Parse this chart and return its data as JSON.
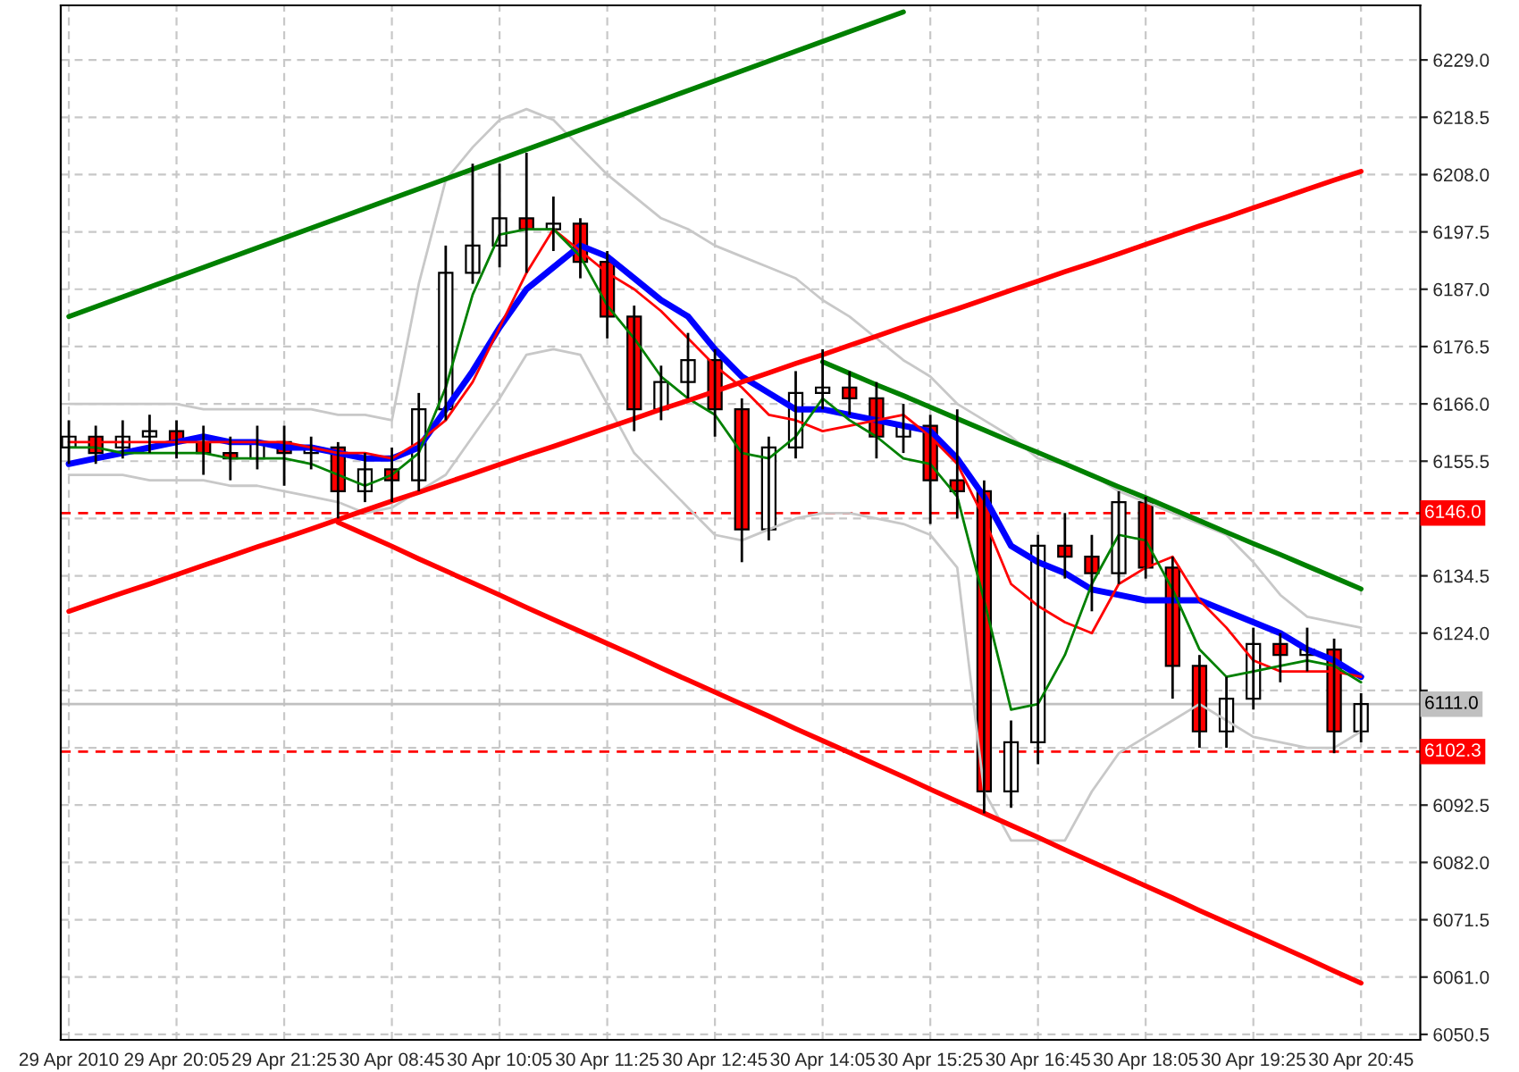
{
  "chart_data": {
    "type": "candlestick",
    "categories": [
      "29 Apr 2010",
      null,
      null,
      null,
      "29 Apr 20:05",
      null,
      null,
      null,
      "29 Apr 21:25",
      null,
      null,
      null,
      "30 Apr 08:45",
      null,
      null,
      null,
      "30 Apr 10:05",
      null,
      null,
      null,
      "30 Apr 11:25",
      null,
      null,
      null,
      "30 Apr 12:45",
      null,
      null,
      null,
      "30 Apr 14:05",
      null,
      null,
      null,
      "30 Apr 15:25",
      null,
      null,
      null,
      "30 Apr 16:45",
      null,
      null,
      null,
      "30 Apr 18:05",
      null,
      null,
      null,
      "30 Apr 19:25",
      null,
      null,
      null,
      "30 Apr 20:45"
    ],
    "ohlc": [
      [
        6158,
        6163,
        6155,
        6160
      ],
      [
        6160,
        6162,
        6155,
        6157
      ],
      [
        6158,
        6163,
        6156,
        6160
      ],
      [
        6160,
        6164,
        6157,
        6161
      ],
      [
        6161,
        6163,
        6156,
        6159
      ],
      [
        6159,
        6162,
        6153,
        6157
      ],
      [
        6157,
        6160,
        6152,
        6156
      ],
      [
        6156,
        6162,
        6154,
        6159
      ],
      [
        6159,
        6162,
        6151,
        6157
      ],
      [
        6157,
        6160,
        6154,
        6158
      ],
      [
        6158,
        6159,
        6145,
        6150
      ],
      [
        6150,
        6157,
        6148,
        6154
      ],
      [
        6154,
        6158,
        6148,
        6152
      ],
      [
        6152,
        6168,
        6150,
        6165
      ],
      [
        6165,
        6195,
        6163,
        6190
      ],
      [
        6190,
        6210,
        6188,
        6195
      ],
      [
        6195,
        6210,
        6191,
        6200
      ],
      [
        6200,
        6212,
        6190,
        6198
      ],
      [
        6198,
        6204,
        6194,
        6199
      ],
      [
        6199,
        6200,
        6189,
        6192
      ],
      [
        6192,
        6194,
        6178,
        6182
      ],
      [
        6182,
        6184,
        6161,
        6165
      ],
      [
        6165,
        6173,
        6163,
        6170
      ],
      [
        6170,
        6179,
        6167,
        6174
      ],
      [
        6174,
        6176,
        6160,
        6165
      ],
      [
        6165,
        6167,
        6137,
        6143
      ],
      [
        6143,
        6160,
        6141,
        6158
      ],
      [
        6158,
        6172,
        6156,
        6168
      ],
      [
        6168,
        6176,
        6165,
        6169
      ],
      [
        6169,
        6172,
        6164,
        6167
      ],
      [
        6167,
        6170,
        6156,
        6160
      ],
      [
        6160,
        6166,
        6157,
        6162
      ],
      [
        6162,
        6164,
        6144,
        6152
      ],
      [
        6152,
        6165,
        6145,
        6150
      ],
      [
        6150,
        6152,
        6091,
        6095
      ],
      [
        6095,
        6108,
        6092,
        6104
      ],
      [
        6104,
        6142,
        6100,
        6140
      ],
      [
        6140,
        6146,
        6134,
        6138
      ],
      [
        6138,
        6142,
        6128,
        6135
      ],
      [
        6135,
        6150,
        6133,
        6148
      ],
      [
        6148,
        6149,
        6134,
        6136
      ],
      [
        6136,
        6138,
        6112,
        6118
      ],
      [
        6118,
        6120,
        6103,
        6106
      ],
      [
        6106,
        6116,
        6103,
        6112
      ],
      [
        6112,
        6125,
        6110,
        6122
      ],
      [
        6122,
        6124,
        6115,
        6120
      ],
      [
        6120,
        6125,
        6117,
        6121
      ],
      [
        6121,
        6123,
        6102,
        6106
      ],
      [
        6106,
        6113,
        6104,
        6111
      ]
    ],
    "series": [
      {
        "type": "line",
        "color": "#0000ff",
        "values": [
          6155,
          6156,
          6157,
          6158,
          6159,
          6160,
          6159,
          6159,
          6158,
          6158,
          6157,
          6156,
          6156,
          6158,
          6165,
          6172,
          6180,
          6187,
          6191,
          6195,
          6193,
          6189,
          6185,
          6182,
          6176,
          6171,
          6168,
          6165,
          6165,
          6164,
          6163,
          6162,
          6161,
          6156,
          6149,
          6140,
          6137,
          6135,
          6132,
          6131,
          6130,
          6130,
          6130,
          6128,
          6126,
          6124,
          6121,
          6119,
          6116
        ]
      },
      {
        "type": "line",
        "color": "#ff0000",
        "values": [
          6159,
          6159,
          6159,
          6159,
          6159,
          6159,
          6159,
          6159,
          6159,
          6158,
          6157,
          6157,
          6156,
          6159,
          6163,
          6170,
          6180,
          6190,
          6198,
          6194,
          6190,
          6187,
          6183,
          6178,
          6173,
          6169,
          6164,
          6163,
          6161,
          6162,
          6163,
          6164,
          6160,
          6155,
          6145,
          6133,
          6129,
          6126,
          6124,
          6133,
          6136,
          6138,
          6130,
          6125,
          6119,
          6117,
          6117,
          6117,
          6116
        ]
      },
      {
        "type": "line",
        "color": "#008000",
        "values": [
          6158,
          6158,
          6157,
          6157,
          6157,
          6157,
          6156,
          6156,
          6156,
          6155,
          6153,
          6151,
          6153,
          6157,
          6169,
          6186,
          6197,
          6198,
          6198,
          6193,
          6184,
          6178,
          6171,
          6167,
          6164,
          6157,
          6156,
          6160,
          6167,
          6163,
          6160,
          6156,
          6155,
          6149,
          6130,
          6110,
          6111,
          6120,
          6133,
          6142,
          6141,
          6132,
          6121,
          6116,
          6117,
          6118,
          6119,
          6118,
          6115
        ]
      },
      {
        "type": "line",
        "color": "#c8c8c8",
        "values": [
          6166,
          6166,
          6166,
          6166,
          6166,
          6165,
          6165,
          6165,
          6165,
          6165,
          6164,
          6164,
          6163,
          6188,
          6207,
          6213,
          6218,
          6220,
          6218,
          6213,
          6208,
          6204,
          6200,
          6198,
          6195,
          6193,
          6191,
          6189,
          6185,
          6182,
          6178,
          6174,
          6171,
          6166,
          6163,
          6160,
          6156,
          6155,
          6153,
          6150,
          6148,
          6146,
          6144,
          6142,
          6137,
          6131,
          6127,
          6126,
          6125
        ]
      },
      {
        "type": "line",
        "color": "#c8c8c8",
        "values": [
          6153,
          6153,
          6153,
          6152,
          6152,
          6152,
          6151,
          6151,
          6150,
          6149,
          6148,
          6146,
          6147,
          6150,
          6153,
          6160,
          6167,
          6175,
          6176,
          6175,
          6166,
          6157,
          6152,
          6147,
          6142,
          6141,
          6143,
          6145,
          6146,
          6146,
          6145,
          6144,
          6142,
          6136,
          6095,
          6086,
          6086,
          6086,
          6095,
          6102,
          6105,
          6108,
          6111,
          6108,
          6105,
          6104,
          6103,
          6103,
          6106
        ]
      },
      {
        "type": "line",
        "color": "#008000",
        "values": [
          6182,
          6183.8,
          6185.6,
          6187.4,
          6189.2,
          6191,
          6192.8,
          6194.6,
          6196.4,
          6198.2,
          6200,
          6201.8,
          6203.6,
          6205.4,
          6207.2,
          6209,
          6210.8,
          6212.6,
          6214.4,
          6216.2,
          6218,
          6219.8,
          6221.6,
          6223.4,
          6225.2,
          6227,
          6228.8,
          6230.6,
          6232.4,
          6234.2,
          6236,
          6237.8,
          null,
          null,
          null,
          null,
          null,
          null,
          null,
          null,
          null,
          null,
          null,
          null,
          null,
          null,
          null,
          null,
          null
        ]
      },
      {
        "type": "line",
        "color": "#ff0000",
        "values": [
          6128.0,
          6129.7,
          6131.4,
          6133.0,
          6134.7,
          6136.4,
          6138.1,
          6139.8,
          6141.4,
          6143.1,
          6144.8,
          6146.5,
          6148.2,
          6149.8,
          6151.5,
          6153.2,
          6154.9,
          6156.6,
          6158.2,
          6159.9,
          6161.6,
          6163.3,
          6165.0,
          6166.6,
          6168.3,
          6170.0,
          6171.7,
          6173.4,
          6175.0,
          6176.7,
          6178.4,
          6180.1,
          6181.8,
          6183.4,
          6185.1,
          6186.8,
          6188.5,
          6190.2,
          6191.8,
          6193.5,
          6195.2,
          6196.9,
          6198.6,
          6200.2,
          6201.9,
          6203.6,
          6205.3,
          6207.0,
          6208.6
        ]
      },
      {
        "type": "line",
        "color": "#ff0000",
        "values": [
          null,
          null,
          null,
          null,
          null,
          null,
          null,
          null,
          null,
          null,
          6144.3,
          6142.1,
          6139.9,
          6137.6,
          6135.4,
          6133.2,
          6131.0,
          6128.7,
          6126.5,
          6124.3,
          6122.1,
          6119.9,
          6117.6,
          6115.4,
          6113.2,
          6111.0,
          6108.8,
          6106.5,
          6104.3,
          6102.1,
          6099.9,
          6097.7,
          6095.4,
          6093.2,
          6091.0,
          6088.8,
          6086.6,
          6084.3,
          6082.1,
          6079.9,
          6077.7,
          6075.5,
          6073.2,
          6071.0,
          6068.8,
          6066.6,
          6064.4,
          6062.1,
          6059.9
        ]
      },
      {
        "type": "line",
        "color": "#008000",
        "values": [
          null,
          null,
          null,
          null,
          null,
          null,
          null,
          null,
          null,
          null,
          null,
          null,
          null,
          null,
          null,
          null,
          null,
          null,
          null,
          null,
          null,
          null,
          null,
          null,
          null,
          null,
          null,
          null,
          6173.7,
          6171.6,
          6169.5,
          6167.5,
          6165.4,
          6163.3,
          6161.2,
          6159.1,
          6157.1,
          6155.0,
          6152.9,
          6150.8,
          6148.8,
          6146.7,
          6144.6,
          6142.5,
          6140.4,
          6138.4,
          6136.3,
          6134.2,
          6132.1
        ]
      }
    ],
    "ref_lines": [
      {
        "axis": "y",
        "value": 6146.0,
        "label": "6146.0",
        "color": "#ff0000",
        "line_style": "dashed"
      },
      {
        "axis": "y",
        "value": 6102.3,
        "label": "6102.3",
        "color": "#ff0000",
        "line_style": "dashed"
      },
      {
        "axis": "y",
        "value": 6111.0,
        "label": "6111.0",
        "color": "#c0c0c0",
        "line_style": "solid"
      }
    ],
    "ylim": [
      6049.5,
      6239
    ],
    "yticks": [
      {
        "value": 6050.5,
        "label": "6050.5"
      },
      {
        "value": 6061.0,
        "label": "6061.0"
      },
      {
        "value": 6071.5,
        "label": "6071.5"
      },
      {
        "value": 6082.0,
        "label": "6082.0"
      },
      {
        "value": 6092.5,
        "label": "6092.5"
      },
      {
        "value": 6103.0,
        "label": null
      },
      {
        "value": 6113.5,
        "label": null
      },
      {
        "value": 6124.0,
        "label": "6124.0"
      },
      {
        "value": 6134.5,
        "label": "6134.5"
      },
      {
        "value": 6145.0,
        "label": null
      },
      {
        "value": 6155.5,
        "label": "6155.5"
      },
      {
        "value": 6166.0,
        "label": "6166.0"
      },
      {
        "value": 6176.5,
        "label": "6176.5"
      },
      {
        "value": 6187.0,
        "label": "6187.0"
      },
      {
        "value": 6197.5,
        "label": "6197.5"
      },
      {
        "value": 6208.0,
        "label": "6208.0"
      },
      {
        "value": 6218.5,
        "label": "6218.5"
      },
      {
        "value": 6229.0,
        "label": "6229.0"
      }
    ],
    "grid": true
  }
}
